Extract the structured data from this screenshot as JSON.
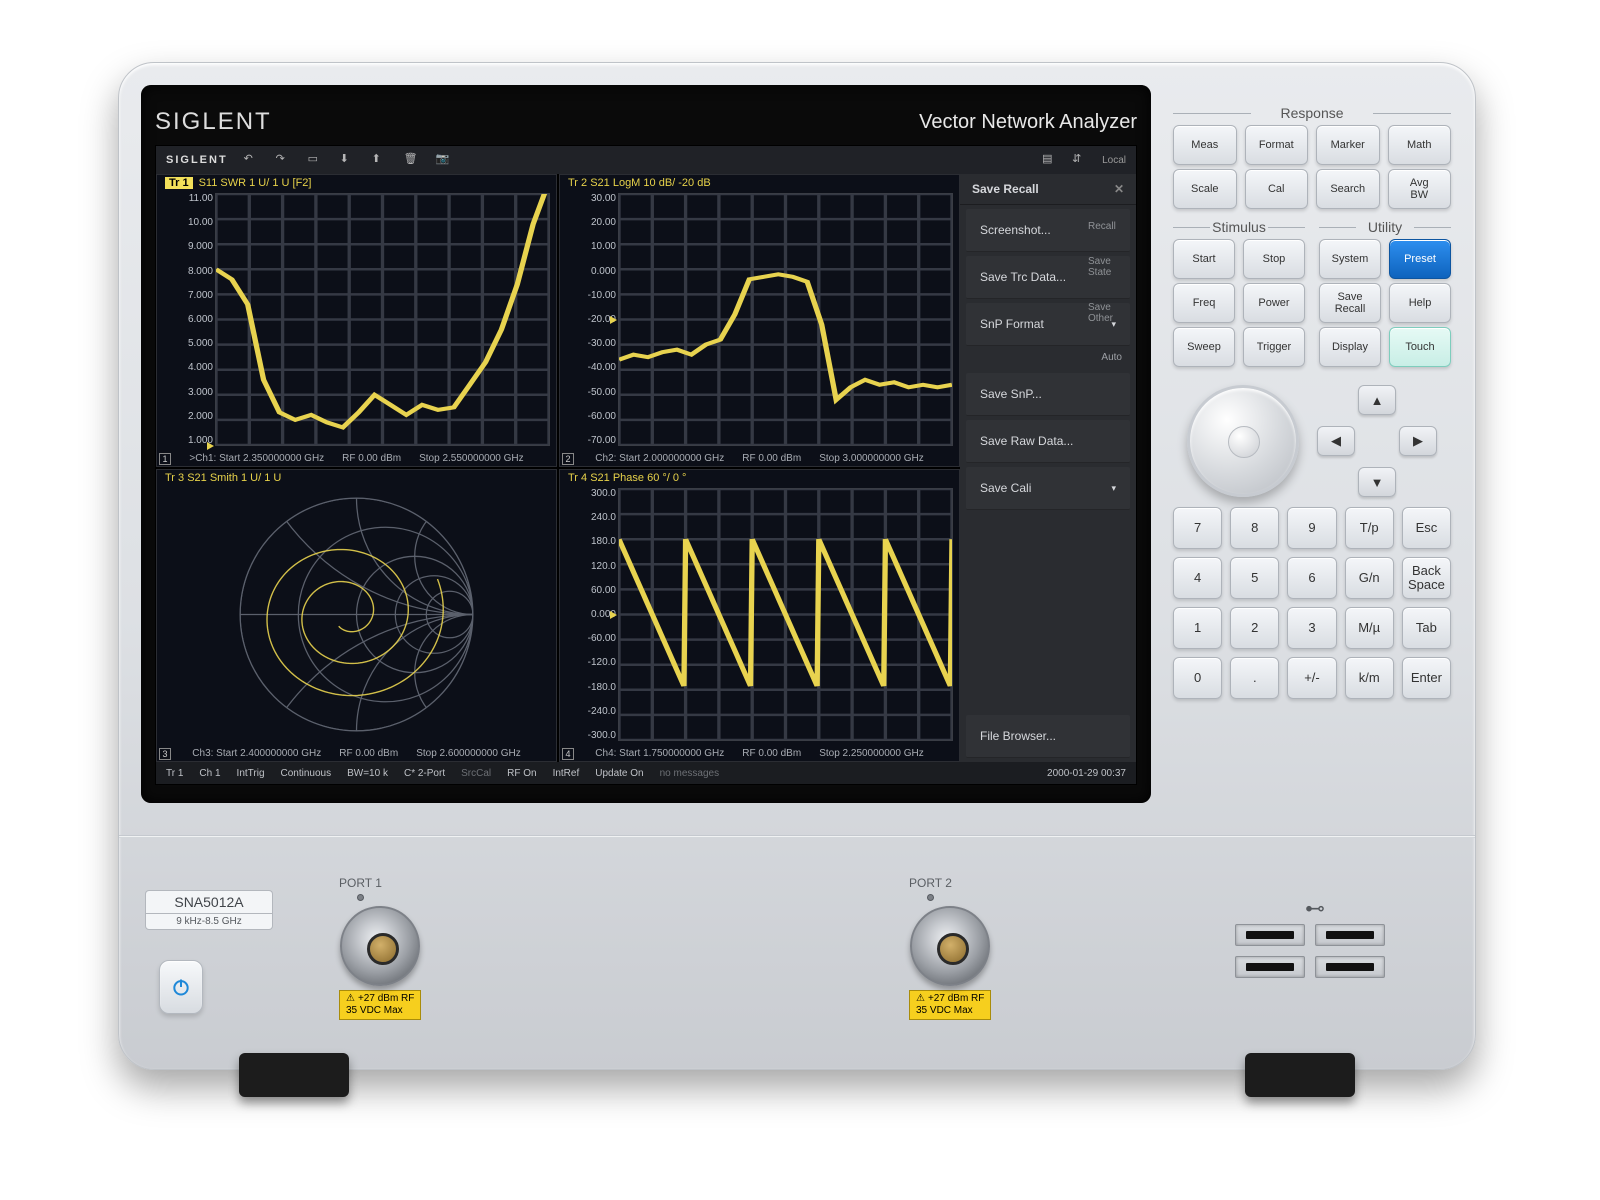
{
  "brand": "SIGLENT",
  "device_label": "Vector Network Analyzer",
  "model": {
    "name": "SNA5012A",
    "range": "9 kHz-8.5 GHz"
  },
  "toolbar": {
    "brand": "SIGLENT",
    "right_label": "Local"
  },
  "panes": {
    "tr1": {
      "title_tag": "Tr 1",
      "title": "S11 SWR 1 U/ 1 U [F2]",
      "yticks": [
        "11.00",
        "10.00",
        "9.000",
        "8.000",
        "7.000",
        "6.000",
        "5.000",
        "4.000",
        "3.000",
        "2.000",
        "1.000"
      ],
      "ref_index": 10,
      "footer": [
        ">Ch1: Start 2.350000000 GHz",
        "RF 0.00 dBm",
        "Stop 2.550000000 GHz"
      ],
      "corner": "1",
      "trace_y": [
        8.0,
        7.6,
        6.6,
        3.6,
        2.3,
        2.0,
        2.2,
        1.9,
        1.7,
        2.3,
        3.0,
        2.6,
        2.2,
        2.6,
        2.4,
        2.5,
        3.4,
        4.3,
        5.6,
        7.4,
        9.8,
        11.5
      ],
      "ymin": 1,
      "ymax": 11
    },
    "tr2": {
      "title": "Tr 2   S21 LogM 10 dB/ -20 dB",
      "yticks": [
        "30.00",
        "20.00",
        "10.00",
        "0.000",
        "-10.00",
        "-20.00",
        "-30.00",
        "-40.00",
        "-50.00",
        "-60.00",
        "-70.00"
      ],
      "ref_index": 5,
      "footer": [
        "Ch2: Start 2.000000000 GHz",
        "RF 0.00 dBm",
        "Stop 3.000000000 GHz"
      ],
      "corner": "2",
      "trace_y": [
        -36,
        -34,
        -35,
        -33,
        -32,
        -34,
        -30,
        -28,
        -18,
        -4,
        -3,
        -2,
        -3,
        -5,
        -22,
        -52,
        -47,
        -44,
        -46,
        -45,
        -47,
        -46,
        -47,
        -46
      ],
      "ymin": -70,
      "ymax": 30
    },
    "tr3": {
      "title": "Tr 3   S21 Smith 1 U/ 1 U",
      "footer": [
        "Ch3: Start 2.400000000 GHz",
        "RF 0.00 dBm",
        "Stop 2.600000000 GHz"
      ],
      "corner": "3"
    },
    "tr4": {
      "title": "Tr 4   S21 Phase 60 °/ 0 °",
      "yticks": [
        "300.0",
        "240.0",
        "180.0",
        "120.0",
        "60.00",
        "0.000",
        "-60.00",
        "-120.0",
        "-180.0",
        "-240.0",
        "-300.0"
      ],
      "ref_index": 5,
      "footer": [
        "Ch4: Start 1.750000000 GHz",
        "RF 0.00 dBm",
        "Stop 2.250000000 GHz"
      ],
      "corner": "4",
      "ymin": -300,
      "ymax": 300
    }
  },
  "sidemenu": {
    "title": "Save Recall",
    "items": [
      "Screenshot...",
      "Save Trc Data...",
      "SnP Format",
      "Save SnP...",
      "Save Raw Data...",
      "Save Cali"
    ],
    "snp_value": "Auto",
    "aux": [
      "Recall",
      "Save\nState",
      "Save\nOther"
    ],
    "bottom": "File Browser..."
  },
  "status": {
    "items": [
      "Tr 1",
      "Ch 1",
      "IntTrig",
      "Continuous",
      "BW=10 k",
      "C* 2-Port",
      "SrcCal",
      "RF On",
      "IntRef",
      "Update On"
    ],
    "msg": "no messages",
    "time": "2000-01-29 00:37"
  },
  "keys": {
    "response_label": "Response",
    "response": [
      [
        "Meas",
        "Format",
        "Marker",
        "Math"
      ],
      [
        "Scale",
        "Cal",
        "Search",
        "Avg\nBW"
      ]
    ],
    "stimulus_label": "Stimulus",
    "utility_label": "Utility",
    "stimulus": [
      [
        "Start",
        "Stop"
      ],
      [
        "Freq",
        "Power"
      ],
      [
        "Sweep",
        "Trigger"
      ]
    ],
    "utility": [
      [
        "System",
        "Preset"
      ],
      [
        "Save\nRecall",
        "Help"
      ],
      [
        "Display",
        "Touch"
      ]
    ],
    "nav": {
      "up": "▲",
      "down": "▼",
      "left": "◀",
      "right": "▶"
    },
    "numpad": [
      [
        "7",
        "8",
        "9",
        "T/p",
        "Esc"
      ],
      [
        "4",
        "5",
        "6",
        "G/n",
        "Back\nSpace"
      ],
      [
        "1",
        "2",
        "3",
        "M/µ",
        "Tab"
      ],
      [
        "0",
        ".",
        "+/-",
        "k/m",
        "Enter"
      ]
    ]
  },
  "ports": {
    "p1_label": "PORT 1",
    "p2_label": "PORT 2",
    "warn_line1": "+27 dBm RF",
    "warn_line2": "35 VDC Max"
  },
  "colors": {
    "trace": "#e8d34f",
    "grid": "#353944",
    "pane_bg": "#0c0f18",
    "preset_btn": "#1b74d4"
  }
}
